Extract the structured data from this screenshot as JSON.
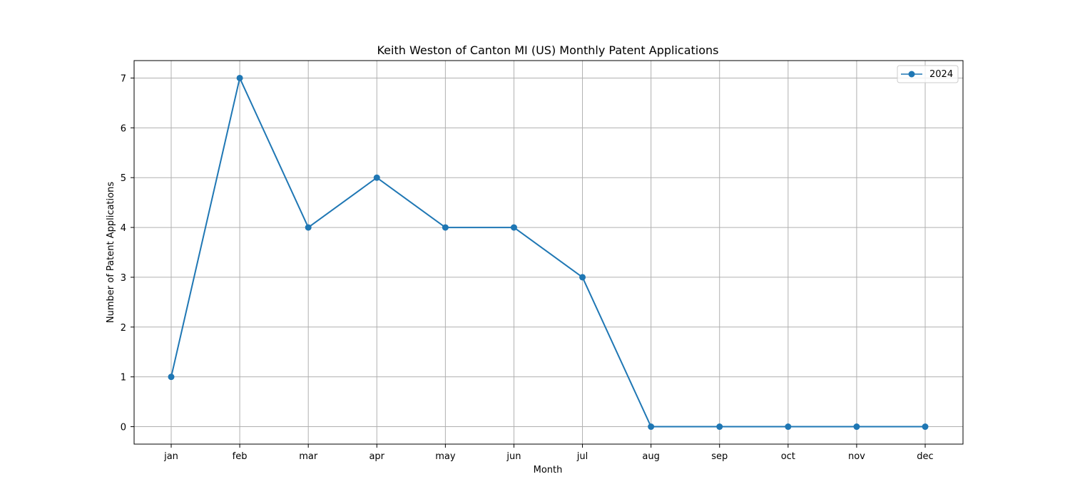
{
  "chart_data": {
    "type": "line",
    "title": "Keith Weston of Canton MI (US) Monthly Patent Applications",
    "xlabel": "Month",
    "ylabel": "Number of Patent Applications",
    "categories": [
      "jan",
      "feb",
      "mar",
      "apr",
      "may",
      "jun",
      "jul",
      "aug",
      "sep",
      "oct",
      "nov",
      "dec"
    ],
    "series": [
      {
        "name": "2024",
        "values": [
          1,
          7,
          4,
          5,
          4,
          4,
          3,
          0,
          0,
          0,
          0,
          0
        ],
        "color": "#1f77b4",
        "marker": "circle"
      }
    ],
    "ylim": [
      -0.35,
      7.35
    ],
    "yticks": [
      0,
      1,
      2,
      3,
      4,
      5,
      6,
      7
    ],
    "grid": true,
    "legend_position": "top-right"
  }
}
